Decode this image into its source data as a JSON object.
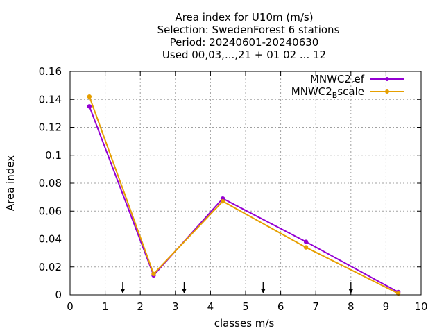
{
  "chart_data": {
    "type": "line",
    "title_lines": [
      "Area index  for U10m (m/s)",
      "Selection: SwedenForest      6 stations",
      "Period: 20240601-20240630",
      "Used 00,03,...,21 + 01 02 ... 12"
    ],
    "xlabel": "classes m/s",
    "ylabel": "Area index",
    "xlim": [
      0,
      10
    ],
    "ylim": [
      0,
      0.16
    ],
    "x_ticks": [
      0,
      1,
      2,
      3,
      4,
      5,
      6,
      7,
      8,
      9,
      10
    ],
    "x_tick_labels": [
      "0",
      "1",
      "2",
      "3",
      "4",
      "5",
      "6",
      "7",
      "8",
      "9",
      "10"
    ],
    "y_ticks": [
      0,
      0.02,
      0.04,
      0.06,
      0.08,
      0.1,
      0.12,
      0.14,
      0.16
    ],
    "y_tick_labels": [
      "0",
      "0.02",
      "0.04",
      "0.06",
      "0.08",
      "0.1",
      "0.12",
      "0.14",
      "0.16"
    ],
    "grid": true,
    "legend_position": "top-right",
    "series": [
      {
        "name_main": "MNWC2",
        "name_sub": "r",
        "name_rest": "ef",
        "color": "#9400d3",
        "x": [
          0.55,
          2.38,
          4.35,
          6.72,
          9.35
        ],
        "values": [
          0.135,
          0.014,
          0.069,
          0.038,
          0.002
        ]
      },
      {
        "name_main": "MNWC2",
        "name_sub": "B",
        "name_rest": "scale",
        "color": "#e69f00",
        "x": [
          0.55,
          2.38,
          4.35,
          6.72,
          9.35
        ],
        "values": [
          0.142,
          0.015,
          0.067,
          0.034,
          0.001
        ]
      }
    ],
    "arrow_markers_x": [
      1.5,
      3.25,
      5.5,
      8.0
    ]
  }
}
